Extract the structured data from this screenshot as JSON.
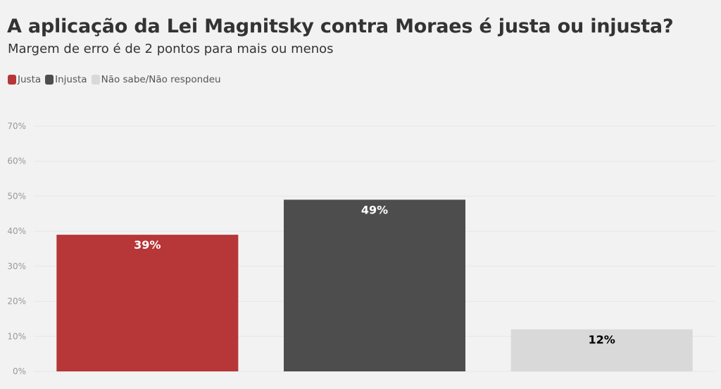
{
  "title": "A aplicação da Lei Magnitsky contra Moraes é justa ou injusta?",
  "subtitle": "Margem de erro é de 2 pontos para mais ou menos",
  "legend": [
    {
      "label": "Justa",
      "color": "#b73637"
    },
    {
      "label": "Injusta",
      "color": "#4d4d4d"
    },
    {
      "label": "Não sabe/Não respondeu",
      "color": "#d9d9d9"
    }
  ],
  "chart_data": {
    "type": "bar",
    "categories": [
      "Justa",
      "Injusta",
      "Não sabe/Não respondeu"
    ],
    "values": [
      39,
      49,
      12
    ],
    "data_labels": [
      "39%",
      "49%",
      "12%"
    ],
    "colors": [
      "#b73637",
      "#4d4d4d",
      "#d9d9d9"
    ],
    "label_colors": [
      "#ffffff",
      "#ffffff",
      "#000000"
    ],
    "ylim": [
      0,
      70
    ],
    "yticks": [
      0,
      10,
      20,
      30,
      40,
      50,
      60,
      70
    ],
    "ytick_labels": [
      "0%",
      "10%",
      "20%",
      "30%",
      "40%",
      "50%",
      "60%",
      "70%"
    ],
    "grid": true
  }
}
